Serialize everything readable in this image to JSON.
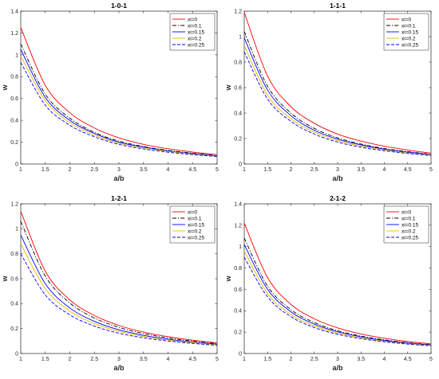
{
  "chart_data": [
    {
      "type": "line",
      "title": "1-0-1",
      "xlabel": "a/b",
      "ylabel": "w",
      "xlim": [
        1,
        5
      ],
      "ylim": [
        0,
        1.4
      ],
      "xticks": [
        "1",
        "1.5",
        "2",
        "2.5",
        "3",
        "3.5",
        "4",
        "4.5",
        "5"
      ],
      "yticks": [
        "0",
        "0.2",
        "0.4",
        "0.6",
        "0.8",
        "1",
        "1.2",
        "1.4"
      ],
      "x": [
        1,
        1.5,
        2,
        2.5,
        3,
        3.5,
        4,
        4.5,
        5
      ],
      "grid": false,
      "legend": "top-right",
      "series": [
        {
          "name": "xi=0",
          "color": "#ff0000",
          "dash": "solid",
          "values": [
            1.25,
            0.72,
            0.47,
            0.33,
            0.24,
            0.18,
            0.14,
            0.11,
            0.085
          ]
        },
        {
          "name": "xi=0.1",
          "color": "#000000",
          "dash": "dashdot",
          "values": [
            1.1,
            0.64,
            0.42,
            0.29,
            0.21,
            0.16,
            0.125,
            0.1,
            0.078
          ]
        },
        {
          "name": "xi=0.15",
          "color": "#0000ff",
          "dash": "solid",
          "values": [
            1.05,
            0.61,
            0.4,
            0.28,
            0.2,
            0.155,
            0.12,
            0.096,
            0.075
          ]
        },
        {
          "name": "xi=0.2",
          "color": "#e6b800",
          "dash": "solid",
          "values": [
            0.99,
            0.58,
            0.38,
            0.265,
            0.19,
            0.147,
            0.115,
            0.091,
            0.071
          ]
        },
        {
          "name": "xi=0.25",
          "color": "#0000ff",
          "dash": "dashed",
          "values": [
            0.93,
            0.54,
            0.355,
            0.25,
            0.18,
            0.138,
            0.108,
            0.086,
            0.068
          ]
        }
      ]
    },
    {
      "type": "line",
      "title": "1-1-1",
      "xlabel": "a/b",
      "ylabel": "w",
      "xlim": [
        1,
        5
      ],
      "ylim": [
        0,
        1.2
      ],
      "xticks": [
        "1",
        "1.5",
        "2",
        "2.5",
        "3",
        "3.5",
        "4",
        "4.5",
        "5"
      ],
      "yticks": [
        "0",
        "0.2",
        "0.4",
        "0.6",
        "0.8",
        "1",
        "1.2"
      ],
      "x": [
        1,
        1.5,
        2,
        2.5,
        3,
        3.5,
        4,
        4.5,
        5
      ],
      "grid": false,
      "legend": "top-right",
      "series": [
        {
          "name": "xi=0",
          "color": "#ff0000",
          "dash": "solid",
          "values": [
            1.19,
            0.69,
            0.45,
            0.32,
            0.235,
            0.18,
            0.14,
            0.11,
            0.085
          ]
        },
        {
          "name": "xi=0.1",
          "color": "#000000",
          "dash": "dashdot",
          "values": [
            1.04,
            0.61,
            0.4,
            0.28,
            0.205,
            0.157,
            0.122,
            0.097,
            0.077
          ]
        },
        {
          "name": "xi=0.15",
          "color": "#0000ff",
          "dash": "solid",
          "values": [
            0.99,
            0.58,
            0.38,
            0.265,
            0.195,
            0.15,
            0.117,
            0.093,
            0.074
          ]
        },
        {
          "name": "xi=0.2",
          "color": "#e6b800",
          "dash": "solid",
          "values": [
            0.93,
            0.54,
            0.355,
            0.25,
            0.183,
            0.14,
            0.11,
            0.088,
            0.07
          ]
        },
        {
          "name": "xi=0.25",
          "color": "#0000ff",
          "dash": "dashed",
          "values": [
            0.88,
            0.51,
            0.335,
            0.235,
            0.172,
            0.132,
            0.104,
            0.083,
            0.066
          ]
        }
      ]
    },
    {
      "type": "line",
      "title": "1-2-1",
      "xlabel": "a/b",
      "ylabel": "w",
      "xlim": [
        1,
        5
      ],
      "ylim": [
        0,
        1.2
      ],
      "xticks": [
        "1",
        "1.5",
        "2",
        "2.5",
        "3",
        "3.5",
        "4",
        "4.5",
        "5"
      ],
      "yticks": [
        "0",
        "0.2",
        "0.4",
        "0.6",
        "0.8",
        "1",
        "1.2"
      ],
      "x": [
        1,
        1.5,
        2,
        2.5,
        3,
        3.5,
        4,
        4.5,
        5
      ],
      "grid": false,
      "legend": "top-right",
      "series": [
        {
          "name": "xi=0",
          "color": "#ff0000",
          "dash": "solid",
          "values": [
            1.14,
            0.66,
            0.43,
            0.305,
            0.225,
            0.172,
            0.135,
            0.107,
            0.085
          ]
        },
        {
          "name": "xi=0.1",
          "color": "#000000",
          "dash": "dashdot",
          "values": [
            1.06,
            0.62,
            0.405,
            0.285,
            0.21,
            0.16,
            0.125,
            0.1,
            0.08
          ]
        },
        {
          "name": "xi=0.15",
          "color": "#0000ff",
          "dash": "solid",
          "values": [
            0.95,
            0.56,
            0.365,
            0.258,
            0.19,
            0.146,
            0.115,
            0.092,
            0.074
          ]
        },
        {
          "name": "xi=0.2",
          "color": "#e6b800",
          "dash": "solid",
          "values": [
            0.88,
            0.52,
            0.34,
            0.24,
            0.178,
            0.137,
            0.108,
            0.087,
            0.07
          ]
        },
        {
          "name": "xi=0.25",
          "color": "#0000ff",
          "dash": "dashed",
          "values": [
            0.8,
            0.47,
            0.31,
            0.22,
            0.163,
            0.126,
            0.1,
            0.081,
            0.066
          ]
        }
      ]
    },
    {
      "type": "line",
      "title": "2-1-2",
      "xlabel": "a/b",
      "ylabel": "w",
      "xlim": [
        1,
        5
      ],
      "ylim": [
        0,
        1.4
      ],
      "xticks": [
        "1",
        "1.5",
        "2",
        "2.5",
        "3",
        "3.5",
        "4",
        "4.5",
        "5"
      ],
      "yticks": [
        "0",
        "0.2",
        "0.4",
        "0.6",
        "0.8",
        "1",
        "1.2",
        "1.4"
      ],
      "x": [
        1,
        1.5,
        2,
        2.5,
        3,
        3.5,
        4,
        4.5,
        5
      ],
      "grid": false,
      "legend": "top-right",
      "series": [
        {
          "name": "xi=0",
          "color": "#ff0000",
          "dash": "solid",
          "values": [
            1.22,
            0.71,
            0.46,
            0.325,
            0.24,
            0.183,
            0.143,
            0.113,
            0.09
          ]
        },
        {
          "name": "xi=0.1",
          "color": "#000000",
          "dash": "dashdot",
          "values": [
            1.08,
            0.63,
            0.41,
            0.29,
            0.213,
            0.163,
            0.128,
            0.102,
            0.082
          ]
        },
        {
          "name": "xi=0.15",
          "color": "#0000ff",
          "dash": "solid",
          "values": [
            1.02,
            0.6,
            0.39,
            0.275,
            0.203,
            0.156,
            0.122,
            0.098,
            0.079
          ]
        },
        {
          "name": "xi=0.2",
          "color": "#e6b800",
          "dash": "solid",
          "values": [
            0.96,
            0.56,
            0.365,
            0.258,
            0.19,
            0.146,
            0.115,
            0.092,
            0.075
          ]
        },
        {
          "name": "xi=0.25",
          "color": "#0000ff",
          "dash": "dashed",
          "values": [
            0.9,
            0.53,
            0.345,
            0.243,
            0.18,
            0.139,
            0.109,
            0.088,
            0.072
          ]
        }
      ]
    }
  ]
}
